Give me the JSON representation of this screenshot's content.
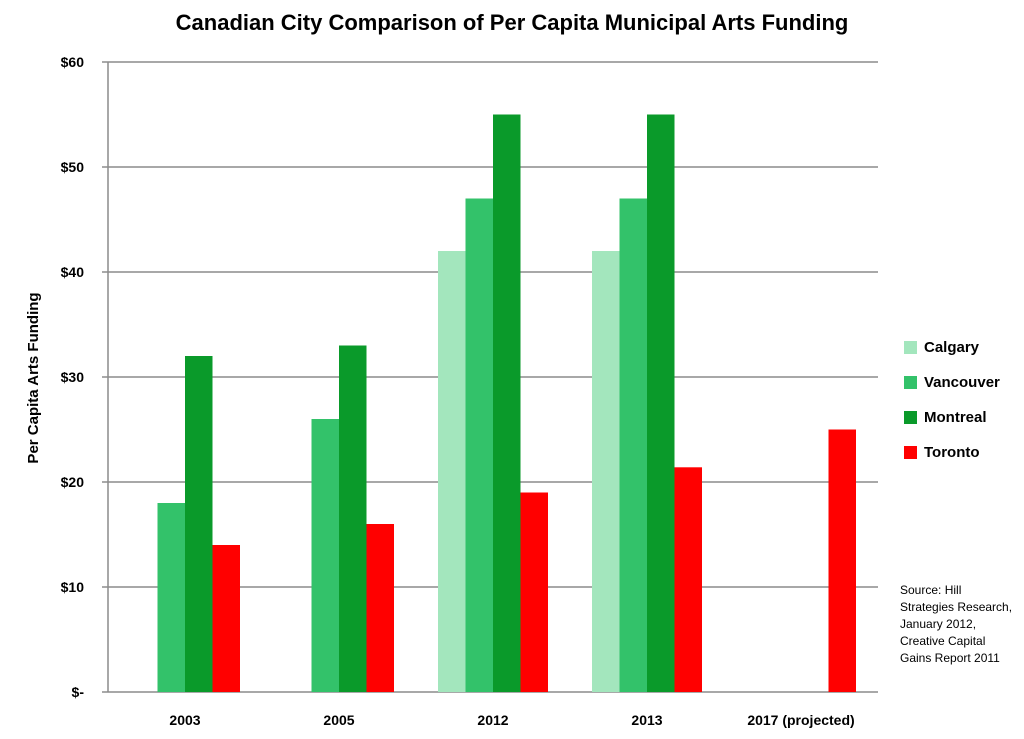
{
  "chart_data": {
    "type": "bar",
    "title": "Canadian City Comparison of Per Capita Municipal Arts Funding",
    "ylabel": "Per Capita Arts Funding",
    "xlabel": "",
    "categories": [
      "2003",
      "2005",
      "2012",
      "2013",
      "2017 (projected)"
    ],
    "ylim": [
      0,
      60
    ],
    "yticks": [
      0,
      10,
      20,
      30,
      40,
      50,
      60
    ],
    "ytick_labels": [
      "$-",
      "$10",
      "$20",
      "$30",
      "$40",
      "$50",
      "$60"
    ],
    "grid": true,
    "legend_position": "right",
    "series": [
      {
        "name": "Calgary",
        "color": "#a3e6bd",
        "values": [
          null,
          null,
          42,
          42,
          null
        ]
      },
      {
        "name": "Vancouver",
        "color": "#33c26a",
        "values": [
          18,
          26,
          47,
          47,
          null
        ]
      },
      {
        "name": "Montreal",
        "color": "#0a9a2a",
        "values": [
          32,
          33,
          55,
          55,
          null
        ]
      },
      {
        "name": "Toronto",
        "color": "#ff0000",
        "values": [
          14,
          16,
          19,
          21.4,
          25
        ]
      }
    ],
    "source_note": "Source:  Hill Strategies Research, January 2012, Creative Capital Gains Report 2011"
  }
}
